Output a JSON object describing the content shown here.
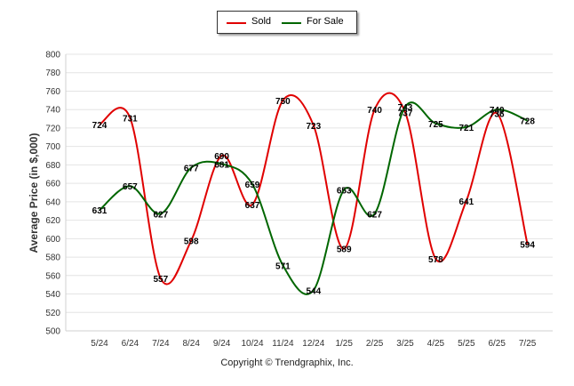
{
  "chart_data": {
    "type": "line",
    "ylabel": "Average Price (in $,000)",
    "ylim": [
      500,
      800
    ],
    "yticks": [
      500,
      520,
      540,
      560,
      580,
      600,
      620,
      640,
      660,
      680,
      700,
      720,
      740,
      760,
      780,
      800
    ],
    "categories": [
      "5/24",
      "6/24",
      "7/24",
      "8/24",
      "9/24",
      "10/24",
      "11/24",
      "12/24",
      "1/25",
      "2/25",
      "3/25",
      "4/25",
      "5/25",
      "6/25",
      "7/25"
    ],
    "grid": true,
    "legend_position": "top-center",
    "series": [
      {
        "name": "Sold",
        "color": "#e00000",
        "values": [
          724,
          731,
          557,
          598,
          690,
          637,
          750,
          723,
          589,
          740,
          737,
          578,
          641,
          736,
          594
        ]
      },
      {
        "name": "For Sale",
        "color": "#006600",
        "values": [
          631,
          657,
          627,
          677,
          681,
          659,
          571,
          544,
          653,
          627,
          743,
          725,
          721,
          740,
          728
        ]
      }
    ]
  },
  "legend": {
    "sold": "Sold",
    "for_sale": "For Sale"
  },
  "footer": {
    "copyright": "Copyright © Trendgraphix, Inc."
  }
}
